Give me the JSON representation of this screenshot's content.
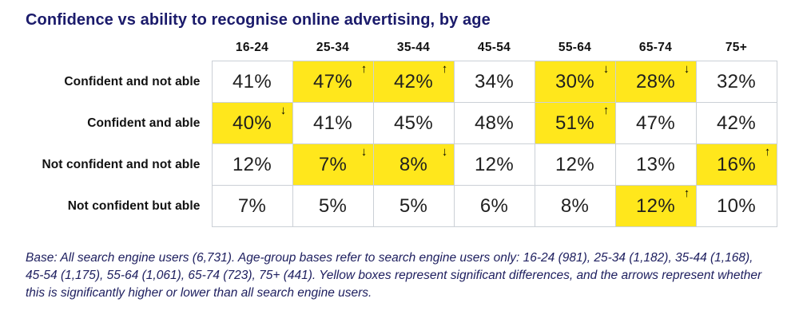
{
  "title": "Confidence vs ability to recognise online advertising, by age",
  "chart_data": {
    "type": "table",
    "columns": [
      "16-24",
      "25-34",
      "35-44",
      "45-54",
      "55-64",
      "65-74",
      "75+"
    ],
    "rows": [
      {
        "label": "Confident and not able",
        "cells": [
          {
            "value": "41%",
            "highlight": false,
            "arrow": null
          },
          {
            "value": "47%",
            "highlight": true,
            "arrow": "up"
          },
          {
            "value": "42%",
            "highlight": true,
            "arrow": "up"
          },
          {
            "value": "34%",
            "highlight": false,
            "arrow": null
          },
          {
            "value": "30%",
            "highlight": true,
            "arrow": "down"
          },
          {
            "value": "28%",
            "highlight": true,
            "arrow": "down"
          },
          {
            "value": "32%",
            "highlight": false,
            "arrow": null
          }
        ]
      },
      {
        "label": "Confident and able",
        "cells": [
          {
            "value": "40%",
            "highlight": true,
            "arrow": "down"
          },
          {
            "value": "41%",
            "highlight": false,
            "arrow": null
          },
          {
            "value": "45%",
            "highlight": false,
            "arrow": null
          },
          {
            "value": "48%",
            "highlight": false,
            "arrow": null
          },
          {
            "value": "51%",
            "highlight": true,
            "arrow": "up"
          },
          {
            "value": "47%",
            "highlight": false,
            "arrow": null
          },
          {
            "value": "42%",
            "highlight": false,
            "arrow": null
          }
        ]
      },
      {
        "label": "Not confident and not able",
        "cells": [
          {
            "value": "12%",
            "highlight": false,
            "arrow": null
          },
          {
            "value": "7%",
            "highlight": true,
            "arrow": "down"
          },
          {
            "value": "8%",
            "highlight": true,
            "arrow": "down"
          },
          {
            "value": "12%",
            "highlight": false,
            "arrow": null
          },
          {
            "value": "12%",
            "highlight": false,
            "arrow": null
          },
          {
            "value": "13%",
            "highlight": false,
            "arrow": null
          },
          {
            "value": "16%",
            "highlight": true,
            "arrow": "up"
          }
        ]
      },
      {
        "label": "Not confident but able",
        "cells": [
          {
            "value": "7%",
            "highlight": false,
            "arrow": null
          },
          {
            "value": "5%",
            "highlight": false,
            "arrow": null
          },
          {
            "value": "5%",
            "highlight": false,
            "arrow": null
          },
          {
            "value": "6%",
            "highlight": false,
            "arrow": null
          },
          {
            "value": "8%",
            "highlight": false,
            "arrow": null
          },
          {
            "value": "12%",
            "highlight": true,
            "arrow": "up"
          },
          {
            "value": "10%",
            "highlight": false,
            "arrow": null
          }
        ]
      }
    ]
  },
  "footnote": "Base: All search engine users (6,731). Age-group bases refer to search engine users only: 16-24 (981), 25-34 (1,182), 35-44 (1,168), 45-54 (1,175), 55-64 (1,061), 65-74 (723), 75+ (441). Yellow boxes represent significant differences, and the arrows represent whether this is significantly higher or lower than all search engine users.",
  "icons": {
    "up_arrow": "↑",
    "down_arrow": "↓"
  },
  "colors": {
    "highlight_yellow": "#FFE71C",
    "title_navy": "#1B1B6B",
    "footnote_navy": "#1F2060",
    "cell_border": "#CBD0D6",
    "cell_text": "#1F1F1F"
  }
}
